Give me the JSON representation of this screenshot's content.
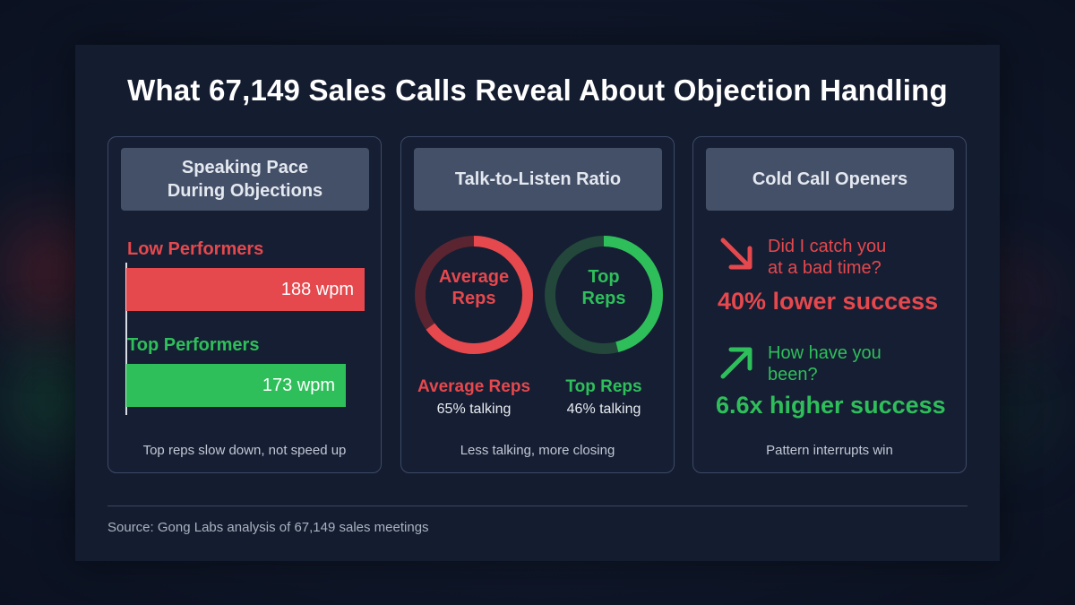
{
  "title": "What 67,149 Sales Calls Reveal About Objection Handling",
  "colors": {
    "red": "#e5484d",
    "green": "#2fbf5a",
    "panel_head": "#445068",
    "background": "#141c30"
  },
  "chart_data": [
    {
      "type": "bar",
      "title": "Speaking Pace During Objections",
      "categories": [
        "Low Performers",
        "Top Performers"
      ],
      "values": [
        188,
        173
      ],
      "value_labels": [
        "188 wpm",
        "173 wpm"
      ],
      "unit": "wpm",
      "xlim": [
        0,
        188
      ],
      "caption": "Top reps slow down, not speed up"
    },
    {
      "type": "pie",
      "title": "Talk-to-Listen Ratio",
      "series": [
        {
          "name": "Average Reps",
          "ring_label": "Average Reps",
          "talking_percent": 65,
          "sub": "65% talking"
        },
        {
          "name": "Top Reps",
          "ring_label": "Top Reps",
          "talking_percent": 46,
          "sub": "46% talking"
        }
      ],
      "caption": "Less talking, more closing"
    }
  ],
  "openers": {
    "title": "Cold Call Openers",
    "items": [
      {
        "icon": "arrow-down-right-icon",
        "phrase_line1": "Did I catch you",
        "phrase_line2": "at a bad time?",
        "result": "40% lower success"
      },
      {
        "icon": "arrow-up-right-icon",
        "phrase_line1": "How have you",
        "phrase_line2": "been?",
        "result": "6.6x higher success"
      }
    ],
    "caption": "Pattern interrupts win"
  },
  "panel1_title_line1": "Speaking Pace",
  "panel1_title_line2": "During Objections",
  "source": "Source: Gong Labs analysis of 67,149 sales meetings"
}
